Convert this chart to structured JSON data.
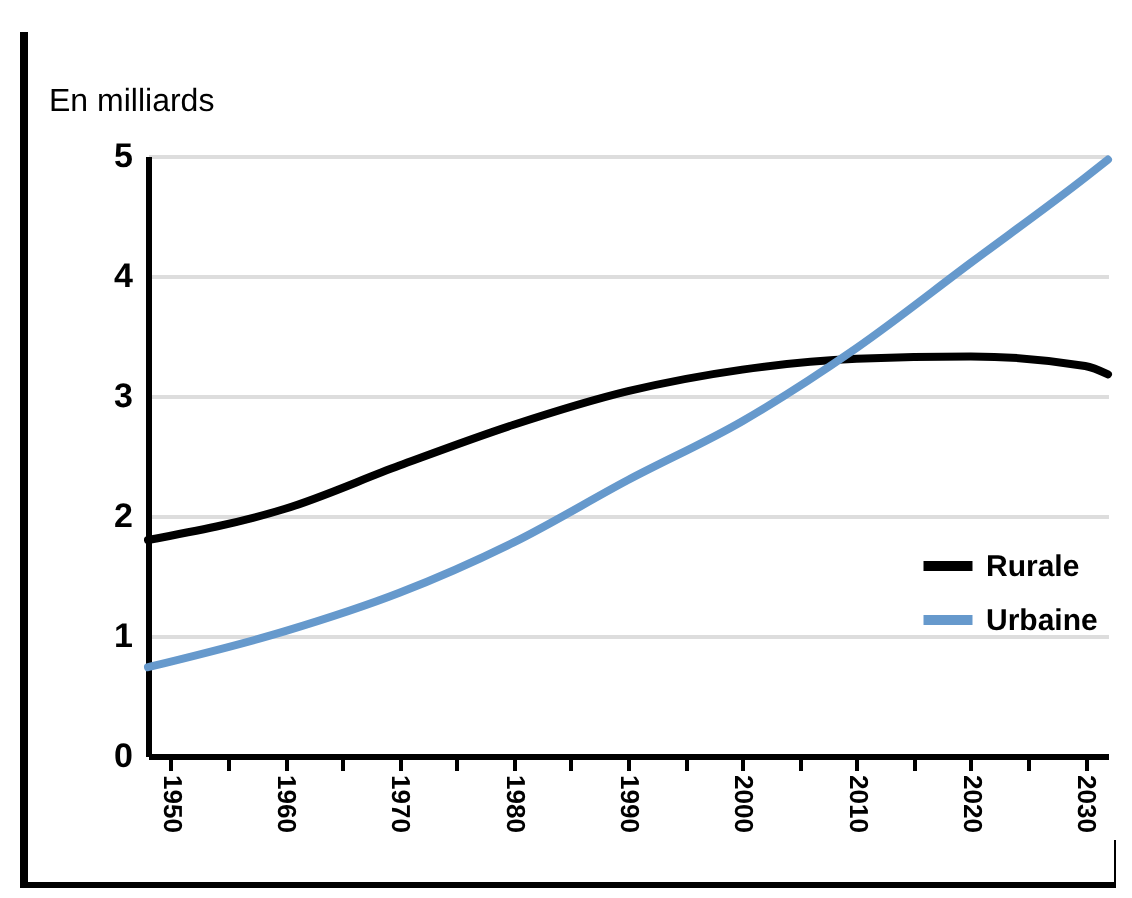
{
  "chart_data": {
    "type": "line",
    "ylabel": "En milliards",
    "x": [
      1948,
      1960,
      1970,
      1980,
      1990,
      2000,
      2010,
      2020,
      2030,
      2032
    ],
    "series": [
      {
        "name": "Rurale",
        "color": "#000000",
        "values": [
          1.8,
          2.06,
          2.42,
          2.76,
          3.04,
          3.22,
          3.31,
          3.33,
          3.25,
          3.18
        ]
      },
      {
        "name": "Urbaine",
        "color": "#6699cc",
        "values": [
          0.74,
          1.04,
          1.36,
          1.78,
          2.3,
          2.79,
          3.4,
          4.11,
          4.82,
          4.97
        ]
      }
    ],
    "xlim": [
      1948,
      2032
    ],
    "xticks": [
      1950,
      {
        "value": 1955,
        "label": null
      },
      1960,
      {
        "value": 1965,
        "label": null
      },
      1970,
      {
        "value": 1975,
        "label": null
      },
      1980,
      {
        "value": 1985,
        "label": null
      },
      1990,
      {
        "value": 1995,
        "label": null
      },
      2000,
      {
        "value": 2005,
        "label": null
      },
      2010,
      {
        "value": 2015,
        "label": null
      },
      2020,
      {
        "value": 2025,
        "label": null
      },
      2030
    ],
    "ylim": [
      0,
      5
    ],
    "yticks": [
      0,
      1,
      2,
      3,
      4,
      5
    ],
    "grid": "y",
    "legend": "right",
    "marker": "none",
    "line_style": "solid"
  }
}
